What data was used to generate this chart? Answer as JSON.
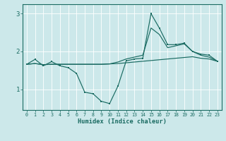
{
  "xlabel": "Humidex (Indice chaleur)",
  "xlim": [
    -0.5,
    23.5
  ],
  "ylim": [
    0.45,
    3.25
  ],
  "bg_color": "#cce8ea",
  "line_color": "#1a6b62",
  "grid_color": "#ffffff",
  "yticks": [
    1,
    2,
    3
  ],
  "xticks": [
    0,
    1,
    2,
    3,
    4,
    5,
    6,
    7,
    8,
    9,
    10,
    11,
    12,
    13,
    14,
    15,
    16,
    17,
    18,
    19,
    20,
    21,
    22,
    23
  ],
  "line1_x": [
    0,
    1,
    2,
    3,
    4,
    5,
    6,
    7,
    8,
    9,
    10,
    11,
    12,
    13,
    14,
    15,
    16,
    17,
    18,
    19,
    20,
    21,
    22,
    23
  ],
  "line1_y": [
    1.66,
    1.79,
    1.62,
    1.73,
    1.62,
    1.57,
    1.42,
    0.92,
    0.88,
    0.68,
    0.62,
    1.08,
    1.75,
    1.8,
    1.82,
    3.0,
    2.62,
    2.18,
    2.18,
    2.22,
    2.0,
    1.93,
    1.9,
    1.74
  ],
  "line2_x": [
    0,
    1,
    2,
    3,
    4,
    5,
    6,
    7,
    8,
    9,
    10,
    11,
    12,
    13,
    14,
    15,
    16,
    17,
    18,
    19,
    20,
    21,
    22,
    23
  ],
  "line2_y": [
    1.66,
    1.68,
    1.65,
    1.66,
    1.66,
    1.66,
    1.66,
    1.66,
    1.66,
    1.66,
    1.67,
    1.68,
    1.7,
    1.72,
    1.74,
    1.76,
    1.78,
    1.8,
    1.82,
    1.84,
    1.86,
    1.82,
    1.8,
    1.74
  ],
  "line3_x": [
    0,
    1,
    2,
    3,
    4,
    5,
    6,
    7,
    8,
    9,
    10,
    11,
    12,
    13,
    14,
    15,
    16,
    17,
    18,
    19,
    20,
    21,
    22,
    23
  ],
  "line3_y": [
    1.66,
    1.68,
    1.65,
    1.66,
    1.66,
    1.66,
    1.66,
    1.66,
    1.66,
    1.66,
    1.67,
    1.72,
    1.8,
    1.85,
    1.9,
    2.62,
    2.45,
    2.1,
    2.15,
    2.2,
    2.0,
    1.9,
    1.85,
    1.74
  ]
}
